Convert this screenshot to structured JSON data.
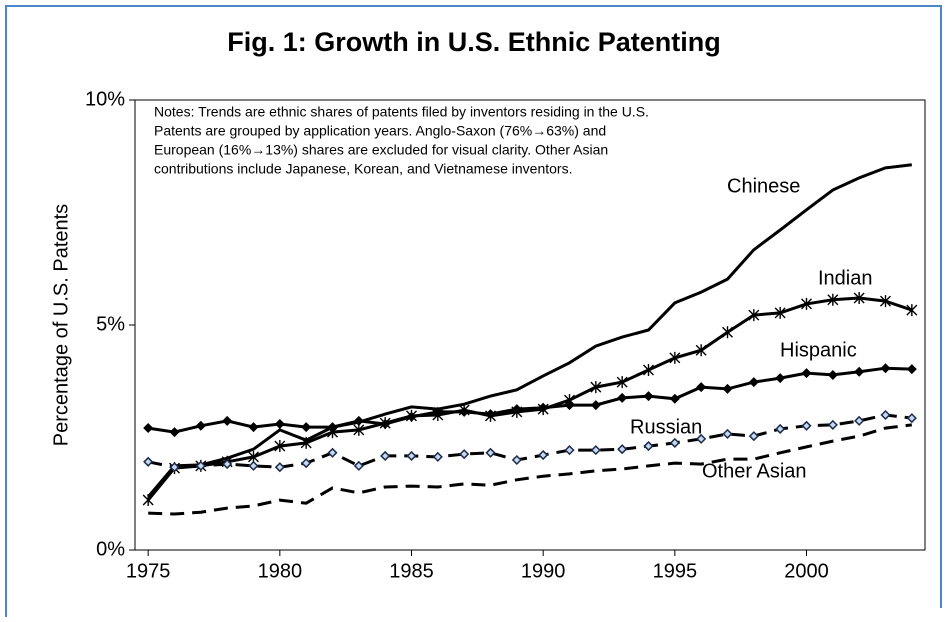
{
  "chart_data": {
    "type": "line",
    "title": "Fig. 1: Growth in U.S. Ethnic Patenting",
    "y_label": "Percentage of U.S. Patents",
    "notes": [
      "Notes:  Trends are ethnic shares of patents filed by inventors residing in the U.S.",
      "Patents are grouped by application years.  Anglo-Saxon (76%→63%) and",
      "European (16%→13%) shares are excluded for visual clarity.  Other Asian",
      "contributions include Japanese, Korean, and Vietnamese inventors."
    ],
    "x": [
      1975,
      1976,
      1977,
      1978,
      1979,
      1980,
      1981,
      1982,
      1983,
      1984,
      1985,
      1986,
      1987,
      1988,
      1989,
      1990,
      1991,
      1992,
      1993,
      1994,
      1995,
      1996,
      1997,
      1998,
      1999,
      2000,
      2001,
      2002,
      2003,
      2004
    ],
    "xlim": [
      1974.5,
      2004.5
    ],
    "xticks": [
      1975,
      1980,
      1985,
      1990,
      1995,
      2000
    ],
    "ylim": [
      0,
      10
    ],
    "yticks": [
      {
        "value": 0,
        "label": "0%"
      },
      {
        "value": 5,
        "label": "5%"
      },
      {
        "value": 10,
        "label": "10%"
      }
    ],
    "series": [
      {
        "name": "Chinese",
        "color": "#000000",
        "marker": "none",
        "dashed": false,
        "values": [
          1.18,
          1.87,
          1.89,
          2.04,
          2.24,
          2.67,
          2.44,
          2.73,
          2.84,
          3.02,
          3.18,
          3.13,
          3.24,
          3.42,
          3.56,
          3.87,
          4.16,
          4.53,
          4.73,
          4.89,
          5.49,
          5.73,
          6.02,
          6.67,
          7.11,
          7.56,
          8.0,
          8.27,
          8.49,
          8.56
        ]
      },
      {
        "name": "Indian",
        "color": "#000000",
        "marker": "asterisk",
        "dashed": false,
        "values": [
          1.11,
          1.82,
          1.87,
          1.96,
          2.07,
          2.31,
          2.38,
          2.62,
          2.67,
          2.82,
          2.98,
          3.0,
          3.11,
          2.98,
          3.07,
          3.13,
          3.33,
          3.62,
          3.73,
          4.0,
          4.27,
          4.44,
          4.84,
          5.22,
          5.27,
          5.47,
          5.56,
          5.6,
          5.53,
          5.33
        ]
      },
      {
        "name": "Hispanic",
        "color": "#000000",
        "marker": "diamond",
        "dashed": false,
        "values": [
          2.71,
          2.62,
          2.76,
          2.87,
          2.73,
          2.8,
          2.73,
          2.73,
          2.87,
          2.8,
          2.96,
          3.07,
          3.07,
          3.02,
          3.13,
          3.16,
          3.22,
          3.22,
          3.38,
          3.42,
          3.36,
          3.62,
          3.58,
          3.73,
          3.82,
          3.93,
          3.89,
          3.96,
          4.04,
          4.02
        ]
      },
      {
        "name": "Russian",
        "color": "#000000",
        "marker": "open-diamond",
        "dashed": true,
        "values": [
          1.96,
          1.84,
          1.87,
          1.91,
          1.87,
          1.84,
          1.93,
          2.16,
          1.87,
          2.09,
          2.09,
          2.07,
          2.13,
          2.16,
          2.0,
          2.11,
          2.22,
          2.22,
          2.24,
          2.31,
          2.38,
          2.47,
          2.58,
          2.53,
          2.69,
          2.76,
          2.78,
          2.87,
          3.0,
          2.93
        ]
      },
      {
        "name": "Other Asian",
        "color": "#000000",
        "marker": "none",
        "dashed": true,
        "values": [
          0.82,
          0.8,
          0.84,
          0.93,
          0.98,
          1.11,
          1.04,
          1.38,
          1.27,
          1.4,
          1.42,
          1.4,
          1.47,
          1.44,
          1.56,
          1.64,
          1.69,
          1.76,
          1.8,
          1.87,
          1.93,
          1.91,
          2.02,
          2.02,
          2.16,
          2.29,
          2.42,
          2.53,
          2.71,
          2.78
        ]
      }
    ]
  }
}
